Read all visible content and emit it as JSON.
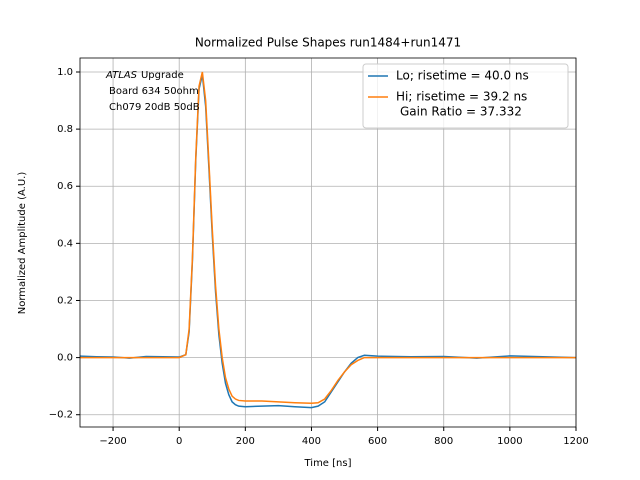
{
  "chart_data": {
    "type": "line",
    "title": "Normalized Pulse Shapes run1484+run1471",
    "x_label": "Time [ns]",
    "y_label": "Normalized Amplitude (A.U.)",
    "annotation": {
      "emphasis": "ATLAS",
      "lines": [
        "Upgrade",
        "Board 634 50ohm",
        "Ch079 20dB 50dB"
      ]
    },
    "x": [
      -300,
      -250,
      -200,
      -150,
      -100,
      -50,
      0,
      20,
      30,
      40,
      50,
      60,
      70,
      80,
      90,
      100,
      110,
      120,
      130,
      140,
      150,
      160,
      170,
      180,
      200,
      250,
      300,
      350,
      400,
      420,
      440,
      460,
      480,
      500,
      520,
      540,
      560,
      600,
      700,
      800,
      900,
      1000,
      1100,
      1200
    ],
    "series": [
      {
        "name": "Lo; risetime = 40.0 ns",
        "color": "#1f77b4",
        "values": [
          0.005,
          0.003,
          0.002,
          -0.002,
          0.004,
          0.003,
          0.002,
          0.01,
          0.09,
          0.34,
          0.69,
          0.94,
          0.99,
          0.88,
          0.66,
          0.43,
          0.23,
          0.08,
          -0.02,
          -0.09,
          -0.13,
          -0.155,
          -0.165,
          -0.17,
          -0.172,
          -0.17,
          -0.168,
          -0.172,
          -0.175,
          -0.17,
          -0.155,
          -0.12,
          -0.085,
          -0.05,
          -0.02,
          0.0,
          0.008,
          0.005,
          0.003,
          0.004,
          -0.002,
          0.006,
          0.003,
          0.0
        ]
      },
      {
        "name": "Hi; risetime = 39.2 ns",
        "note": "Gain Ratio = 37.332",
        "color": "#ff7f0e",
        "values": [
          0,
          0,
          0,
          0,
          0,
          0,
          0,
          0.01,
          0.1,
          0.35,
          0.7,
          0.95,
          1.0,
          0.9,
          0.68,
          0.45,
          0.25,
          0.1,
          0.0,
          -0.07,
          -0.11,
          -0.135,
          -0.145,
          -0.15,
          -0.152,
          -0.152,
          -0.155,
          -0.158,
          -0.16,
          -0.158,
          -0.145,
          -0.115,
          -0.08,
          -0.05,
          -0.025,
          -0.01,
          0,
          0,
          0,
          0,
          0,
          0,
          0,
          0
        ]
      }
    ],
    "xlim": [
      -300,
      1200
    ],
    "ylim": [
      -0.243,
      1.049
    ],
    "xticks": [
      {
        "value": -200,
        "label": "−200"
      },
      0,
      200,
      400,
      600,
      800,
      1000,
      1200
    ],
    "yticks": [
      {
        "value": -0.2,
        "label": "−0.2"
      },
      {
        "value": 0,
        "label": "0.0"
      },
      0.2,
      0.4,
      0.6,
      0.8,
      {
        "value": 1,
        "label": "1.0"
      }
    ],
    "grid": true,
    "legend": "upper right"
  }
}
